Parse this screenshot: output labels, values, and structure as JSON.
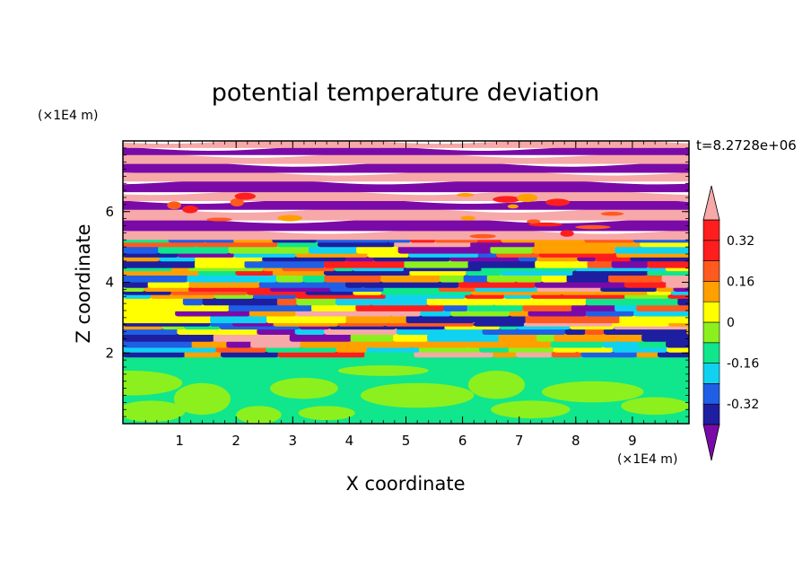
{
  "chart_data": {
    "type": "heatmap",
    "title": "potential temperature deviation",
    "xlabel": "X coordinate",
    "ylabel": "Z coordinate",
    "x_unit": "(×1E4 m)",
    "y_unit": "(×1E4 m)",
    "time_label": "t=8.2728e+06",
    "xlim": [
      0,
      10
    ],
    "ylim": [
      0,
      8
    ],
    "x_ticks": [
      1,
      2,
      3,
      4,
      5,
      6,
      7,
      8,
      9
    ],
    "y_ticks": [
      2,
      4,
      6
    ],
    "colorbar": {
      "levels": [
        -0.4,
        -0.32,
        -0.24,
        -0.16,
        -0.08,
        0,
        0.08,
        0.16,
        0.24,
        0.32,
        0.4
      ],
      "labels": [
        "0.32",
        "0.16",
        "0",
        "-0.16",
        "-0.32"
      ],
      "label_values": [
        0.32,
        0.16,
        0,
        -0.16,
        -0.32
      ],
      "colors": [
        "#7a0aa8",
        "#1e1ea0",
        "#1f5fe6",
        "#10d2f0",
        "#10e68c",
        "#8cf01e",
        "#ffff00",
        "#ffa000",
        "#ff5a1e",
        "#ff1e1e",
        "#f7a8a8"
      ],
      "extend": "both"
    },
    "layers": [
      {
        "z_min": 0,
        "z_max": 1.9,
        "description": "light green / green near zero"
      },
      {
        "z_min": 1.9,
        "z_max": 5.2,
        "description": "banded mixed values"
      },
      {
        "z_min": 5.2,
        "z_max": 8,
        "description": "alternating pink and purple bands"
      }
    ]
  }
}
